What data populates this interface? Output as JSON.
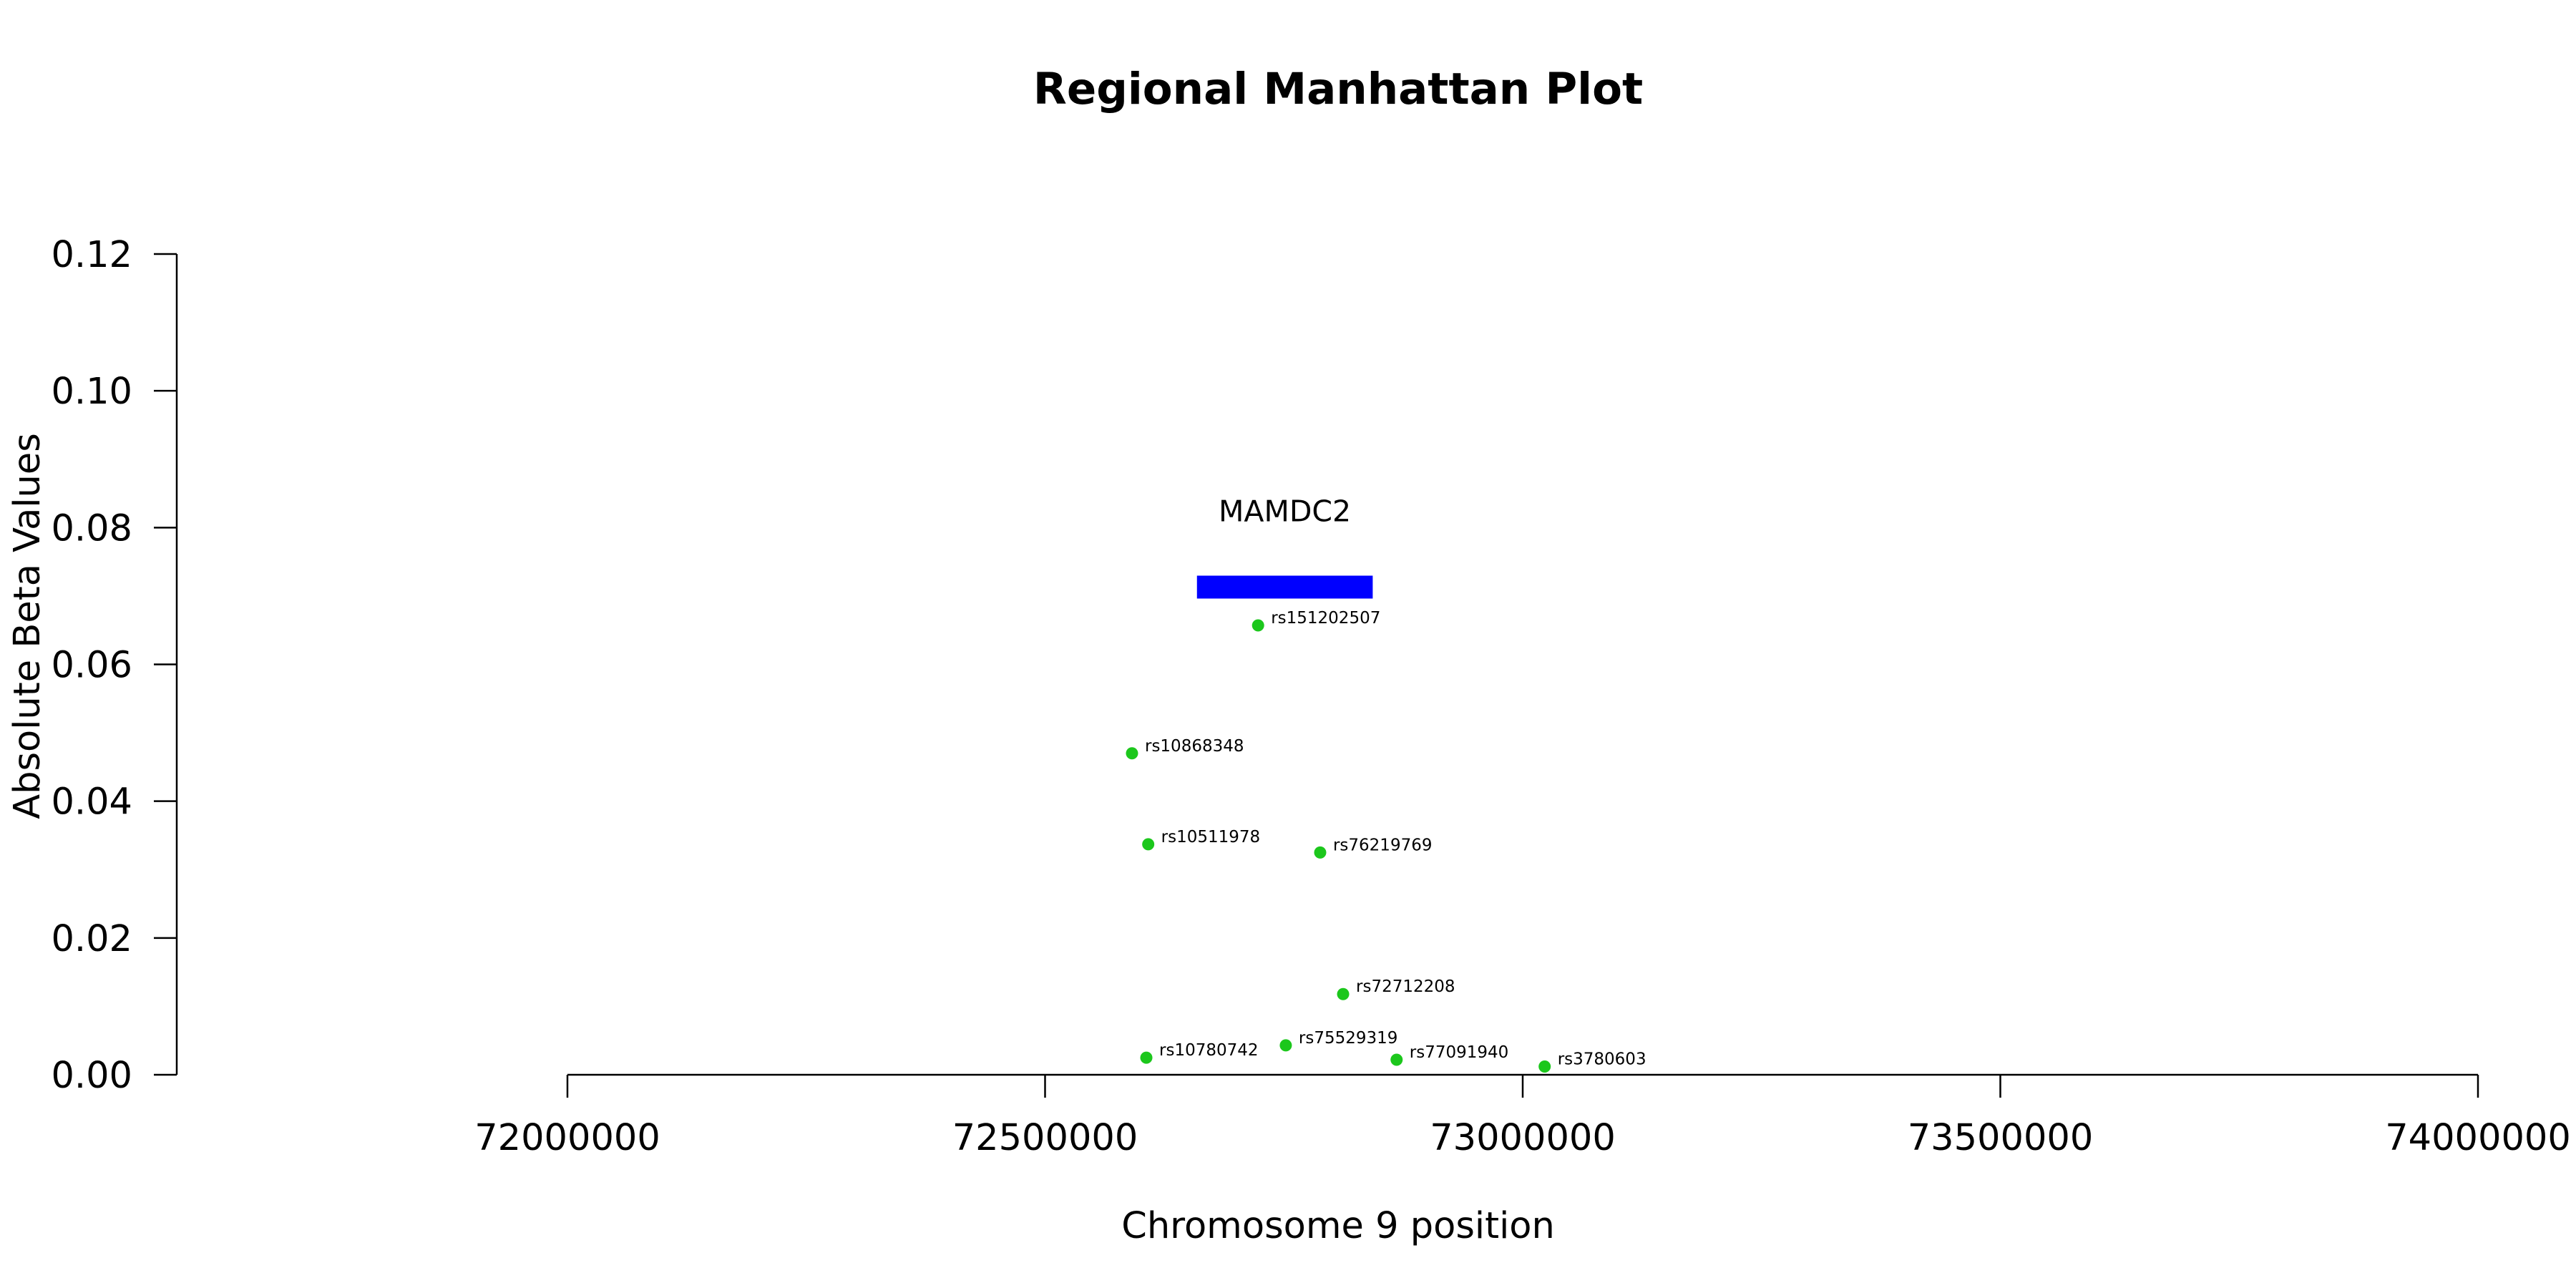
{
  "chart_data": {
    "type": "scatter",
    "title": "Regional Manhattan Plot",
    "xlabel": "Chromosome 9 position",
    "ylabel": "Absolute Beta Values",
    "xlim": [
      72000000,
      74000000
    ],
    "ylim": [
      0,
      0.12
    ],
    "x_ticks": [
      72000000,
      72500000,
      73000000,
      73500000,
      74000000
    ],
    "y_ticks": [
      "0.00",
      "0.02",
      "0.04",
      "0.06",
      "0.08",
      "0.10",
      "0.12"
    ],
    "grid": false,
    "point_color": "#1cc71c",
    "points": [
      {
        "label": "rs151202507",
        "x": 72723000,
        "y": 0.0657
      },
      {
        "label": "rs10868348",
        "x": 72591000,
        "y": 0.047
      },
      {
        "label": "rs10511978",
        "x": 72608000,
        "y": 0.0337
      },
      {
        "label": "rs76219769",
        "x": 72788000,
        "y": 0.0325
      },
      {
        "label": "rs72712208",
        "x": 72812000,
        "y": 0.0118
      },
      {
        "label": "rs75529319",
        "x": 72752000,
        "y": 0.0043
      },
      {
        "label": "rs10780742",
        "x": 72606000,
        "y": 0.0025
      },
      {
        "label": "rs77091940",
        "x": 72868000,
        "y": 0.0022
      },
      {
        "label": "rs3780603",
        "x": 73023000,
        "y": 0.0012
      }
    ],
    "genes": [
      {
        "name": "MAMDC2",
        "start": 72659000,
        "end": 72843000,
        "y": 0.0713,
        "color": "#0000ff"
      }
    ]
  }
}
